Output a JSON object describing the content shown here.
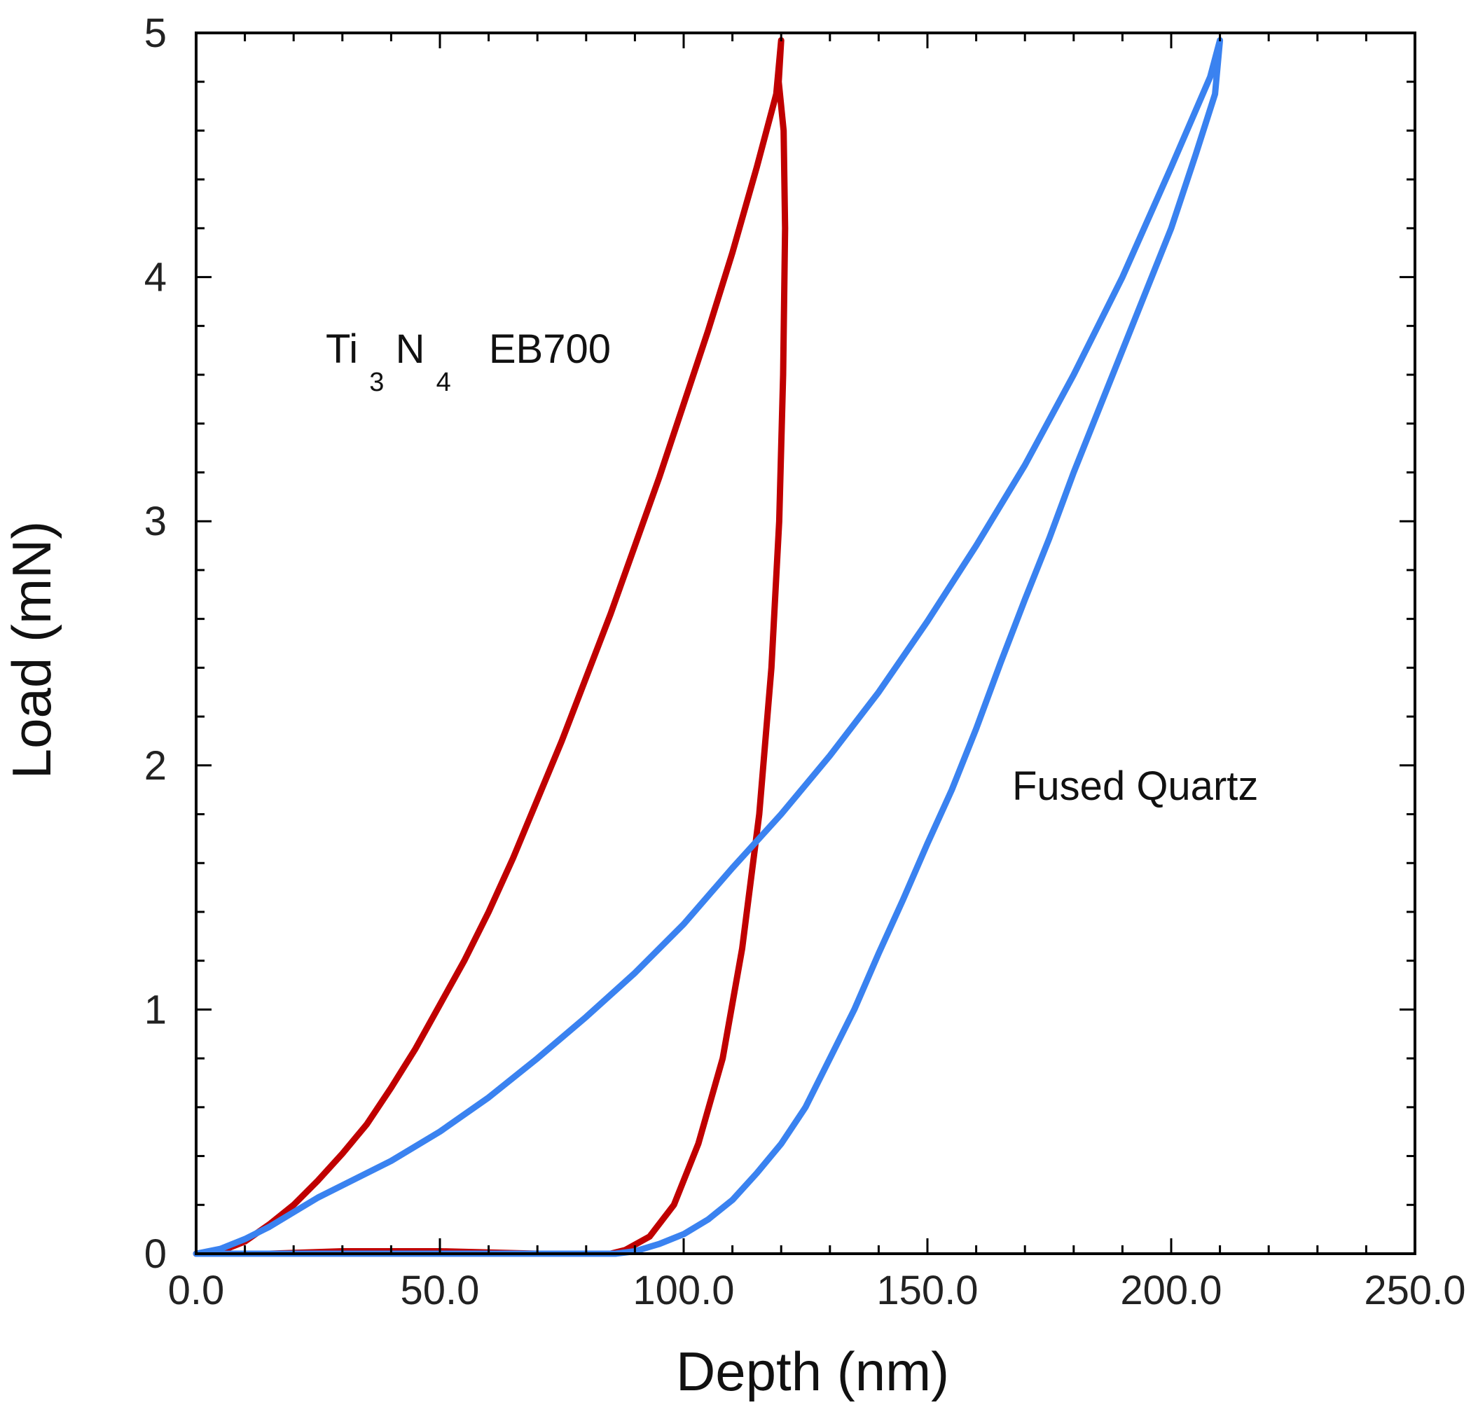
{
  "chart_data": {
    "type": "line",
    "title": "",
    "xlabel": "Depth (nm)",
    "ylabel": "Load (mN)",
    "xlim": [
      0,
      250
    ],
    "ylim": [
      0,
      5
    ],
    "x_ticks": [
      "0.0",
      "50.0",
      "100.0",
      "150.0",
      "200.0",
      "250.0"
    ],
    "y_ticks": [
      "0",
      "1",
      "2",
      "3",
      "4",
      "5"
    ],
    "grid": false,
    "annotations": [
      {
        "name": "ti3n4-label",
        "parts": [
          "Ti",
          "3",
          "N",
          "4",
          "EB700"
        ]
      },
      {
        "name": "fused-quartz-label",
        "text": "Fused Quartz"
      }
    ],
    "series": [
      {
        "name": "Ti3N4 EB700",
        "color": "#c00000",
        "points": [
          [
            0,
            0
          ],
          [
            5,
            0.01
          ],
          [
            10,
            0.05
          ],
          [
            15,
            0.12
          ],
          [
            20,
            0.2
          ],
          [
            25,
            0.3
          ],
          [
            30,
            0.41
          ],
          [
            35,
            0.53
          ],
          [
            40,
            0.68
          ],
          [
            45,
            0.84
          ],
          [
            50,
            1.02
          ],
          [
            55,
            1.2
          ],
          [
            60,
            1.4
          ],
          [
            65,
            1.62
          ],
          [
            70,
            1.86
          ],
          [
            75,
            2.1
          ],
          [
            80,
            2.36
          ],
          [
            85,
            2.62
          ],
          [
            90,
            2.9
          ],
          [
            95,
            3.18
          ],
          [
            100,
            3.48
          ],
          [
            105,
            3.78
          ],
          [
            110,
            4.1
          ],
          [
            115,
            4.45
          ],
          [
            119,
            4.75
          ],
          [
            120,
            4.97
          ],
          [
            119.5,
            4.8
          ],
          [
            120.5,
            4.6
          ],
          [
            120.8,
            4.2
          ],
          [
            120.4,
            3.6
          ],
          [
            119.6,
            3.0
          ],
          [
            118,
            2.4
          ],
          [
            115.5,
            1.8
          ],
          [
            112,
            1.25
          ],
          [
            108,
            0.8
          ],
          [
            103,
            0.45
          ],
          [
            98,
            0.2
          ],
          [
            93,
            0.07
          ],
          [
            88,
            0.015
          ],
          [
            85,
            0.0
          ],
          [
            70,
            0.0
          ],
          [
            50,
            0.01
          ],
          [
            30,
            0.01
          ],
          [
            15,
            0.0
          ],
          [
            0,
            0.0
          ]
        ]
      },
      {
        "name": "Fused Quartz",
        "color": "#3a82f0",
        "points": [
          [
            0,
            0
          ],
          [
            5,
            0.02
          ],
          [
            10,
            0.06
          ],
          [
            15,
            0.11
          ],
          [
            20,
            0.17
          ],
          [
            25,
            0.23
          ],
          [
            30,
            0.28
          ],
          [
            40,
            0.38
          ],
          [
            50,
            0.5
          ],
          [
            60,
            0.64
          ],
          [
            70,
            0.8
          ],
          [
            80,
            0.97
          ],
          [
            90,
            1.15
          ],
          [
            100,
            1.35
          ],
          [
            110,
            1.58
          ],
          [
            120,
            1.8
          ],
          [
            130,
            2.04
          ],
          [
            140,
            2.3
          ],
          [
            150,
            2.59
          ],
          [
            160,
            2.9
          ],
          [
            170,
            3.23
          ],
          [
            180,
            3.6
          ],
          [
            190,
            4.0
          ],
          [
            200,
            4.45
          ],
          [
            208,
            4.82
          ],
          [
            210,
            4.97
          ],
          [
            209,
            4.75
          ],
          [
            205,
            4.5
          ],
          [
            200,
            4.2
          ],
          [
            195,
            3.95
          ],
          [
            190,
            3.7
          ],
          [
            185,
            3.45
          ],
          [
            180,
            3.2
          ],
          [
            175,
            2.93
          ],
          [
            170,
            2.68
          ],
          [
            165,
            2.42
          ],
          [
            160,
            2.15
          ],
          [
            155,
            1.9
          ],
          [
            150,
            1.68
          ],
          [
            145,
            1.45
          ],
          [
            140,
            1.23
          ],
          [
            135,
            1.0
          ],
          [
            130,
            0.8
          ],
          [
            125,
            0.6
          ],
          [
            120,
            0.45
          ],
          [
            115,
            0.33
          ],
          [
            110,
            0.22
          ],
          [
            105,
            0.14
          ],
          [
            100,
            0.08
          ],
          [
            95,
            0.04
          ],
          [
            90,
            0.01
          ],
          [
            86,
            0.0
          ],
          [
            70,
            0.0
          ],
          [
            50,
            0.0
          ],
          [
            30,
            0.0
          ],
          [
            10,
            0.0
          ],
          [
            0,
            0.0
          ]
        ]
      }
    ]
  }
}
